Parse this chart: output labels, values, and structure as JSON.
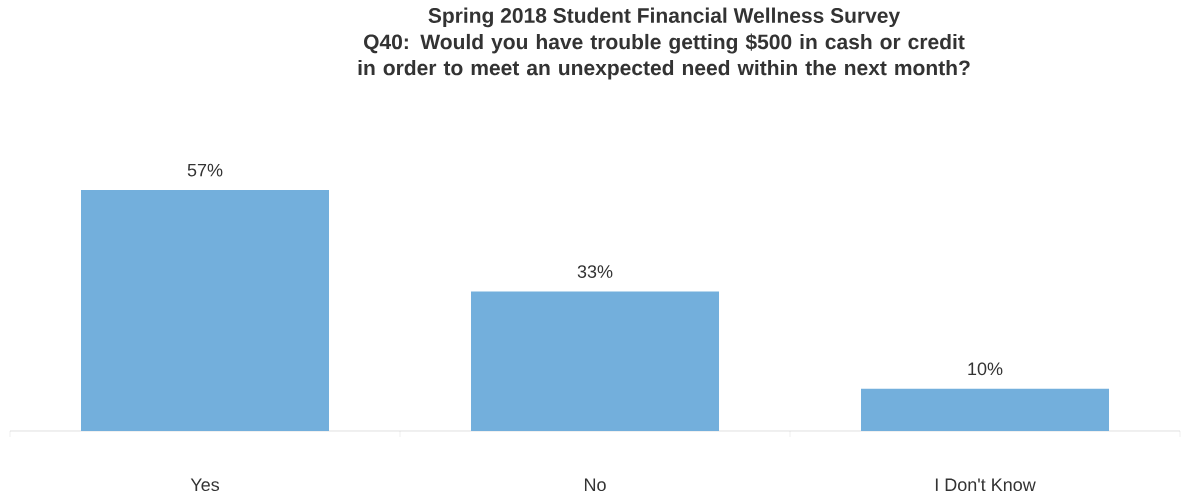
{
  "chart_data": {
    "type": "bar",
    "title": "Spring 2018 Student Financial Wellness Survey",
    "subtitle": "Q40: Would you have trouble getting $500 in cash or credit in order to meet an unexpected need within the next month?",
    "categories": [
      "Yes",
      "No",
      "I Don't Know"
    ],
    "values": [
      57,
      33,
      10
    ],
    "value_labels": [
      "57%",
      "33%",
      "10%"
    ],
    "color": "#73afdc"
  }
}
